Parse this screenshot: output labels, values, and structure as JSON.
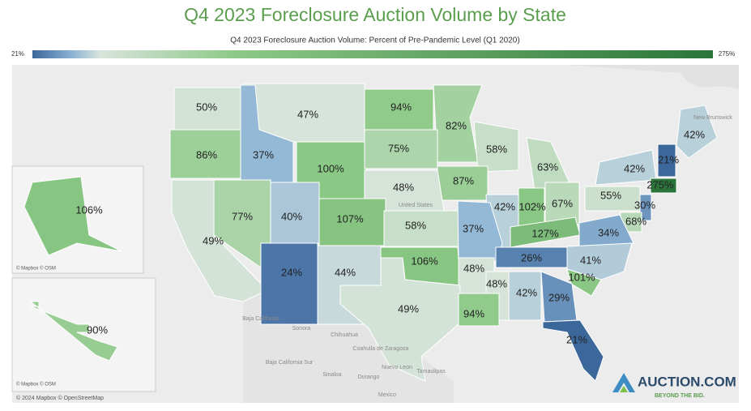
{
  "chart_data": {
    "type": "choropleth",
    "title": "Q4 2023 Foreclosure Auction Volume by State",
    "legend": {
      "title": "Q4 2023 Foreclosure Auction Volume: Percent of Pre-Pandemic Level (Q1 2020)",
      "min": {
        "value": 21,
        "label": "21%"
      },
      "max": {
        "value": 275,
        "label": "275%"
      },
      "stops": [
        {
          "offset": 0,
          "color": "#3b679b"
        },
        {
          "offset": 0.06,
          "color": "#8fb5d6"
        },
        {
          "offset": 0.1,
          "color": "#d8e4dc"
        },
        {
          "offset": 0.3,
          "color": "#8cc986"
        },
        {
          "offset": 1,
          "color": "#2b7439"
        }
      ]
    },
    "values": [
      50,
      47,
      94,
      82,
      42,
      86,
      37,
      100,
      75,
      58,
      63,
      42,
      21,
      87,
      48,
      275,
      55,
      77,
      40,
      107,
      42,
      102,
      67,
      30,
      49,
      58,
      37,
      127,
      68,
      34,
      24,
      44,
      106,
      48,
      26,
      41,
      48,
      101,
      42,
      29,
      49,
      94,
      21,
      106,
      90
    ],
    "value_labels": [
      "50%",
      "47%",
      "94%",
      "82%",
      "42%",
      "86%",
      "37%",
      "100%",
      "75%",
      "58%",
      "63%",
      "42%",
      "21%",
      "87%",
      "48%",
      "275%",
      "55%",
      "77%",
      "40%",
      "107%",
      "42%",
      "102%",
      "67%",
      "30%",
      "49%",
      "58%",
      "37%",
      "127%",
      "68%",
      "34%",
      "24%",
      "44%",
      "106%",
      "48%",
      "26%",
      "41%",
      "48%",
      "101%",
      "42%",
      "29%",
      "49%",
      "94%",
      "21%",
      "106%",
      "90%"
    ],
    "place_labels": [
      "Baja California",
      "Sonora",
      "Chihuahua",
      "Coahuila de Zaragoza",
      "Nuevo Leon",
      "Tamaulipas",
      "Sinaloa",
      "Durango",
      "Baja California Sur",
      "Mexico",
      "United States",
      "New Brunswick"
    ],
    "attribution": "© 2024 Mapbox © OpenStreetMap",
    "inset_attribution": [
      "© Mapbox © OSM",
      "© Mapbox © OSM"
    ],
    "logo": {
      "name": "AUCTION.COM",
      "tagline": "BEYOND THE BID."
    }
  }
}
